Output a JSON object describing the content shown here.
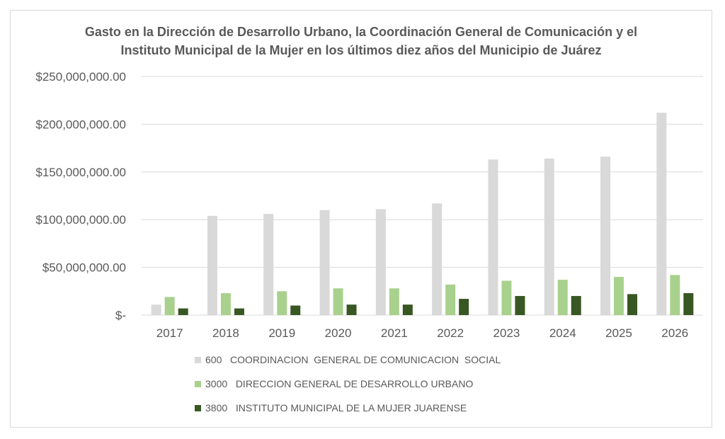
{
  "chart_data": {
    "type": "bar",
    "title": "Gasto en la Dirección de Desarrollo Urbano, la Coordinación General de Comunicación y  el Instituto Municipal de la Mujer en los últimos diez años del Municipio de Juárez",
    "xlabel": "",
    "ylabel": "",
    "ylim": [
      0,
      250000000
    ],
    "yticks": [
      0,
      50000000,
      100000000,
      150000000,
      200000000,
      250000000
    ],
    "ytick_labels": [
      "$-",
      "$50,000,000.00",
      "$100,000,000.00",
      "$150,000,000.00",
      "$200,000,000.00",
      "$250,000,000.00"
    ],
    "grid": true,
    "legend_position": "bottom",
    "categories": [
      "2017",
      "2018",
      "2019",
      "2020",
      "2021",
      "2022",
      "2023",
      "2024",
      "2025",
      "2026"
    ],
    "series": [
      {
        "name": "600   COORDINACION  GENERAL DE COMUNICACION  SOCIAL",
        "color": "#d9d9d9",
        "values": [
          11000000,
          104000000,
          106000000,
          110000000,
          111000000,
          117000000,
          163000000,
          164000000,
          166000000,
          212000000
        ]
      },
      {
        "name": "3000   DIRECCION GENERAL DE DESARROLLO URBANO",
        "color": "#a9d18e",
        "values": [
          19000000,
          23000000,
          25000000,
          28000000,
          28000000,
          32000000,
          36000000,
          37000000,
          40000000,
          42000000
        ]
      },
      {
        "name": "3800   INSTITUTO MUNICIPAL DE LA MUJER JUARENSE",
        "color": "#385723",
        "values": [
          7000000,
          7000000,
          10000000,
          11000000,
          11000000,
          17000000,
          20000000,
          20000000,
          22000000,
          23000000
        ]
      }
    ]
  }
}
